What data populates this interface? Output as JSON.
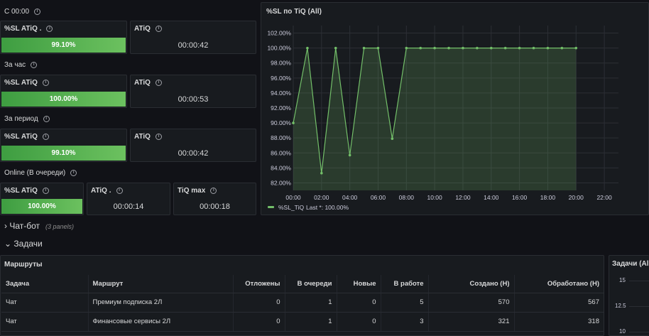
{
  "rows": [
    {
      "label": "С 00:00",
      "sl_title": "%SL ATiQ .",
      "sl_value": "99.10%",
      "atiq_title": "ATiQ",
      "atiq_value": "00:00:42"
    },
    {
      "label": "За час",
      "sl_title": "%SL ATiQ",
      "sl_value": "100.00%",
      "atiq_title": "ATiQ",
      "atiq_value": "00:00:53"
    },
    {
      "label": "За период",
      "sl_title": "%SL ATiQ",
      "sl_value": "99.10%",
      "atiq_title": "ATiQ",
      "atiq_value": "00:00:42"
    }
  ],
  "online": {
    "label": "Online (В очереди)",
    "sl_title": "%SL ATiQ",
    "sl_value": "100.00%",
    "atiq_title": "ATiQ .",
    "atiq_value": "00:00:14",
    "tiq_title": "TiQ max",
    "tiq_value": "00:00:18"
  },
  "chart_panel": {
    "title": "%SL по TiQ (All)"
  },
  "chart_data": {
    "type": "area",
    "title": "%SL по TiQ (All)",
    "xlabel": "",
    "ylabel": "",
    "x_ticks": [
      "00:00",
      "02:00",
      "04:00",
      "06:00",
      "08:00",
      "10:00",
      "12:00",
      "14:00",
      "16:00",
      "18:00",
      "20:00",
      "22:00"
    ],
    "y_ticks": [
      "82.00%",
      "84.00%",
      "86.00%",
      "88.00%",
      "90.00%",
      "92.00%",
      "94.00%",
      "96.00%",
      "98.00%",
      "100.00%",
      "102.00%"
    ],
    "ylim": [
      81,
      103
    ],
    "xlim": [
      0,
      23
    ],
    "grid": true,
    "legend_position": "bottom-left",
    "series": [
      {
        "name": "%SL_TiQ",
        "color": "#73bf69",
        "x": [
          0,
          1,
          2,
          3,
          4,
          5,
          6,
          7,
          8,
          9,
          10,
          11,
          12,
          13,
          14,
          15,
          16,
          17,
          18,
          19,
          20
        ],
        "values": [
          90.0,
          100.0,
          83.3,
          100.0,
          85.7,
          100.0,
          100.0,
          87.9,
          100.0,
          100.0,
          100.0,
          100.0,
          100.0,
          100.0,
          100.0,
          100.0,
          100.0,
          100.0,
          100.0,
          100.0,
          100.0
        ]
      }
    ],
    "legend_text": "%SL_TiQ",
    "legend_calc": "Last *: 100.00%"
  },
  "sections": {
    "chatbot": {
      "label": "Чат-бот",
      "sub": "(3 panels)"
    },
    "tasks": {
      "label": "Задачи"
    }
  },
  "routes": {
    "title": "Маршруты",
    "headers": [
      "Задача",
      "Маршрут",
      "Отложены",
      "В очереди",
      "Новые",
      "В работе",
      "Создано (Н)",
      "Обработано (Н)"
    ],
    "rows": [
      [
        "Чат",
        "Премиум подписка 2Л",
        "0",
        "1",
        "0",
        "5",
        "570",
        "567"
      ],
      [
        "Чат",
        "Финансовые сервисы 2Л",
        "0",
        "1",
        "0",
        "3",
        "321",
        "318"
      ]
    ]
  },
  "tasks_chart": {
    "title": "Задачи (All",
    "y_ticks": [
      "15",
      "12.5",
      "10"
    ]
  },
  "colors": {
    "accent": "#73bf69",
    "bar_green": "#56a64b",
    "background": "#111217",
    "panel": "#181b1f"
  }
}
